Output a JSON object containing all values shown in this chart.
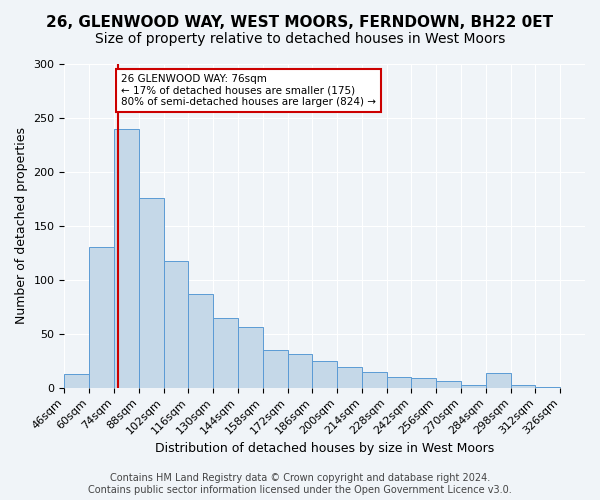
{
  "title": "26, GLENWOOD WAY, WEST MOORS, FERNDOWN, BH22 0ET",
  "subtitle": "Size of property relative to detached houses in West Moors",
  "xlabel": "Distribution of detached houses by size in West Moors",
  "ylabel": "Number of detached properties",
  "bin_labels": [
    "46sqm",
    "60sqm",
    "74sqm",
    "88sqm",
    "102sqm",
    "116sqm",
    "130sqm",
    "144sqm",
    "158sqm",
    "172sqm",
    "186sqm",
    "200sqm",
    "214sqm",
    "228sqm",
    "242sqm",
    "256sqm",
    "270sqm",
    "284sqm",
    "298sqm",
    "312sqm",
    "326sqm"
  ],
  "bin_edges": [
    46,
    60,
    74,
    88,
    102,
    116,
    130,
    144,
    158,
    172,
    186,
    200,
    214,
    228,
    242,
    256,
    270,
    284,
    298,
    312,
    326
  ],
  "bar_heights": [
    13,
    130,
    240,
    176,
    117,
    87,
    65,
    56,
    35,
    31,
    25,
    19,
    15,
    10,
    9,
    6,
    3,
    14,
    3,
    1
  ],
  "bar_color": "#c5d8e8",
  "bar_edge_color": "#5b9bd5",
  "property_size": 76,
  "vline_color": "#cc0000",
  "annotation_title": "26 GLENWOOD WAY: 76sqm",
  "annotation_line1": "← 17% of detached houses are smaller (175)",
  "annotation_line2": "80% of semi-detached houses are larger (824) →",
  "annotation_box_color": "#ffffff",
  "annotation_box_edge": "#cc0000",
  "ylim": [
    0,
    300
  ],
  "yticks": [
    0,
    50,
    100,
    150,
    200,
    250,
    300
  ],
  "footer1": "Contains HM Land Registry data © Crown copyright and database right 2024.",
  "footer2": "Contains public sector information licensed under the Open Government Licence v3.0.",
  "background_color": "#f0f4f8",
  "plot_background": "#f0f4f8",
  "title_fontsize": 11,
  "subtitle_fontsize": 10,
  "axis_label_fontsize": 9,
  "tick_fontsize": 8,
  "footer_fontsize": 7
}
